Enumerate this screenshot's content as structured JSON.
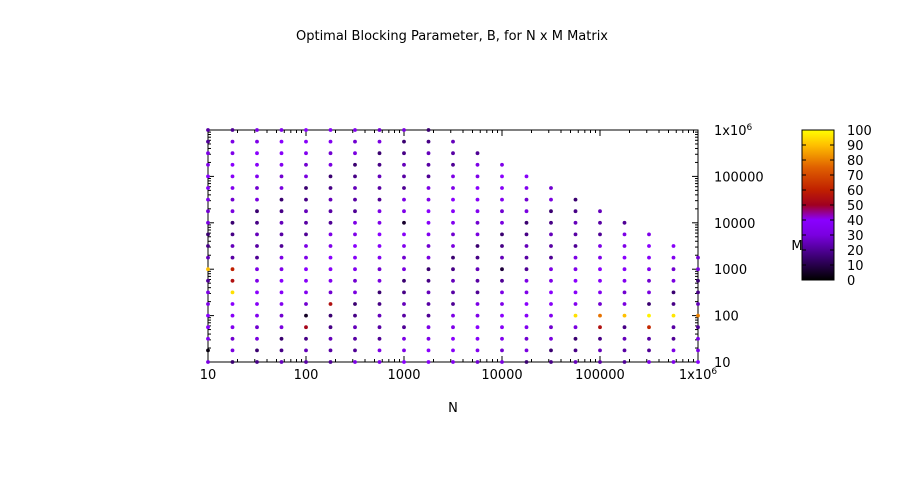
{
  "chart_data": {
    "type": "scatter",
    "title": "Optimal Blocking Parameter, B, for N x M Matrix",
    "xlabel": "N",
    "ylabel": "M",
    "x_scale": "log",
    "y_scale": "log",
    "xlim": [
      10,
      1000000
    ],
    "ylim": [
      10,
      1000000
    ],
    "x_ticks": [
      {
        "value": 10,
        "label": "10"
      },
      {
        "value": 100,
        "label": "100"
      },
      {
        "value": 1000,
        "label": "1000"
      },
      {
        "value": 10000,
        "label": "10000"
      },
      {
        "value": 100000,
        "label": "100000"
      },
      {
        "value": 1000000,
        "label": "1x10",
        "sup": "6"
      }
    ],
    "y_ticks": [
      {
        "value": 10,
        "label": "10"
      },
      {
        "value": 100,
        "label": "100"
      },
      {
        "value": 1000,
        "label": "1000"
      },
      {
        "value": 10000,
        "label": "10000"
      },
      {
        "value": 100000,
        "label": "100000"
      },
      {
        "value": 1000000,
        "label": "1x10",
        "sup": "6"
      }
    ],
    "grid": false,
    "point_grid": {
      "note_hidden": true,
      "n_values": [
        10,
        17.78,
        31.62,
        56.23,
        100,
        177.8,
        316.2,
        562.3,
        1000,
        1778,
        3162,
        5623,
        10000,
        17783,
        31623,
        56234,
        100000,
        177828,
        316228,
        562341,
        1000000
      ],
      "m_values": [
        10,
        17.78,
        31.62,
        56.23,
        100,
        177.8,
        316.2,
        562.3,
        1000,
        1778,
        3162,
        5623,
        10000,
        17783,
        31623,
        56234,
        100000,
        177828,
        316228,
        562341,
        1000000
      ],
      "max_m_per_n": [
        1000000,
        1000000,
        1000000,
        1000000,
        1000000,
        1000000,
        1000000,
        1000000,
        1000000,
        1000000,
        562341,
        316228,
        177828,
        100000,
        56234,
        31623,
        17783,
        10000,
        5623,
        3162,
        1778
      ],
      "default_b_pattern": [
        30,
        20,
        35,
        25,
        40,
        15,
        32,
        28,
        22,
        38,
        18,
        33
      ],
      "highlights": [
        {
          "n": 10,
          "m": 1000,
          "b": 90
        },
        {
          "n": 17.78,
          "m": 1000,
          "b": 60
        },
        {
          "n": 17.78,
          "m": 562.3,
          "b": 55
        },
        {
          "n": 17.78,
          "m": 316.2,
          "b": 95
        },
        {
          "n": 177.8,
          "m": 177.8,
          "b": 55
        },
        {
          "n": 100,
          "m": 56.23,
          "b": 52
        },
        {
          "n": 56234,
          "m": 100,
          "b": 95
        },
        {
          "n": 100000,
          "m": 100,
          "b": 78
        },
        {
          "n": 100000,
          "m": 56.23,
          "b": 55
        },
        {
          "n": 177828,
          "m": 100,
          "b": 90
        },
        {
          "n": 316228,
          "m": 100,
          "b": 98
        },
        {
          "n": 316228,
          "m": 56.23,
          "b": 62
        },
        {
          "n": 562341,
          "m": 100,
          "b": 96
        },
        {
          "n": 1000000,
          "m": 100,
          "b": 80
        },
        {
          "n": 10,
          "m": 17.78,
          "b": 2
        },
        {
          "n": 100,
          "m": 100,
          "b": 5
        },
        {
          "n": 1000,
          "m": 10000,
          "b": 6
        },
        {
          "n": 10000,
          "m": 1000,
          "b": 8
        }
      ]
    },
    "colorbar": {
      "label": "M",
      "min": 0,
      "max": 100,
      "palette": "black-purple-red-orange-yellow",
      "ticks": [
        0,
        10,
        20,
        30,
        40,
        50,
        60,
        70,
        80,
        90,
        100
      ]
    }
  }
}
